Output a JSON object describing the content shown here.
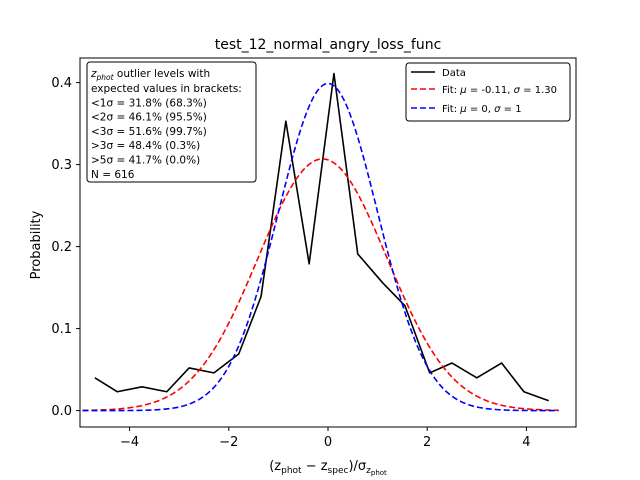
{
  "chart_data": {
    "type": "line",
    "title": "test_12_normal_angry_loss_func",
    "xlabel_parts": [
      "(z",
      "phot",
      " − z",
      "spec",
      ")/σ",
      "z",
      "phot"
    ],
    "ylabel": "Probability",
    "xlim": [
      -5.0,
      5.0
    ],
    "ylim": [
      -0.02,
      0.43
    ],
    "xticks": [
      -4,
      -2,
      0,
      2,
      4
    ],
    "xtick_labels": [
      "−4",
      "−2",
      "0",
      "2",
      "4"
    ],
    "yticks": [
      0.0,
      0.1,
      0.2,
      0.3,
      0.4
    ],
    "ytick_labels": [
      "0.0",
      "0.1",
      "0.2",
      "0.3",
      "0.4"
    ],
    "grid": false,
    "legend_position": "top-right",
    "series": [
      {
        "name": "Data",
        "color": "#000000",
        "style": "solid",
        "x": [
          -4.7,
          -4.25,
          -3.75,
          -3.25,
          -2.8,
          -2.3,
          -1.8,
          -1.35,
          -0.85,
          -0.38,
          0.12,
          0.6,
          1.1,
          1.55,
          2.05,
          2.5,
          3.0,
          3.5,
          3.95,
          4.45
        ],
        "y": [
          0.04,
          0.023,
          0.029,
          0.023,
          0.052,
          0.046,
          0.069,
          0.139,
          0.353,
          0.179,
          0.411,
          0.191,
          0.156,
          0.128,
          0.046,
          0.058,
          0.04,
          0.058,
          0.023,
          0.012
        ]
      },
      {
        "name_parts": [
          "Fit: ",
          "μ",
          " = -0.11, ",
          "σ",
          " = 1.30"
        ],
        "color": "#ff0000",
        "style": "dashed",
        "mu": -0.11,
        "sigma": 1.3,
        "x_range": [
          -4.95,
          4.65
        ]
      },
      {
        "name_parts": [
          "Fit: ",
          "μ",
          " = 0, ",
          "σ",
          " = 1"
        ],
        "color": "#0000ff",
        "style": "dashed",
        "mu": 0,
        "sigma": 1,
        "x_range": [
          -4.95,
          4.65
        ]
      }
    ],
    "annotation": {
      "header_sym": "z",
      "header_sub": "phot",
      "header_rest": " outlier levels with",
      "lines": [
        " expected values in brackets:",
        "<1σ = 31.8% (68.3%)",
        "<2σ = 46.1% (95.5%)",
        "<3σ = 51.6% (99.7%)",
        ">3σ = 48.4% (0.3%)",
        ">5σ = 41.7% (0.0%)",
        "N = 616"
      ]
    }
  }
}
